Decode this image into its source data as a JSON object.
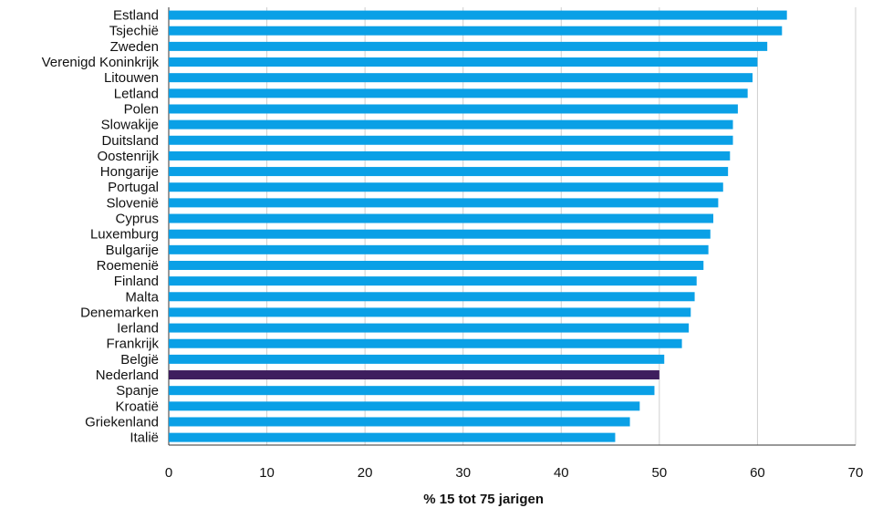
{
  "chart_data": {
    "type": "bar",
    "orientation": "horizontal",
    "categories": [
      "Estland",
      "Tsjechië",
      "Zweden",
      "Verenigd Koninkrijk",
      "Litouwen",
      "Letland",
      "Polen",
      "Slowakije",
      "Duitsland",
      "Oostenrijk",
      "Hongarije",
      "Portugal",
      "Slovenië",
      "Cyprus",
      "Luxemburg",
      "Bulgarije",
      "Roemenië",
      "Finland",
      "Malta",
      "Denemarken",
      "Ierland",
      "Frankrijk",
      "België",
      "Nederland",
      "Spanje",
      "Kroatië",
      "Griekenland",
      "Italië"
    ],
    "values": [
      63.0,
      62.5,
      61.0,
      60.0,
      59.5,
      59.0,
      58.0,
      57.5,
      57.5,
      57.2,
      57.0,
      56.5,
      56.0,
      55.5,
      55.2,
      55.0,
      54.5,
      53.8,
      53.6,
      53.2,
      53.0,
      52.3,
      50.5,
      50.0,
      49.5,
      48.0,
      47.0,
      45.5
    ],
    "highlight": "Nederland",
    "xlabel": "% 15 tot 75 jarigen",
    "ylabel": "",
    "title": "",
    "xlim": [
      0,
      70
    ],
    "xticks": [
      0,
      10,
      20,
      30,
      40,
      50,
      60,
      70
    ],
    "grid": true,
    "colors": {
      "bar": "#0aa0e6",
      "highlight": "#3e1e5e"
    }
  }
}
